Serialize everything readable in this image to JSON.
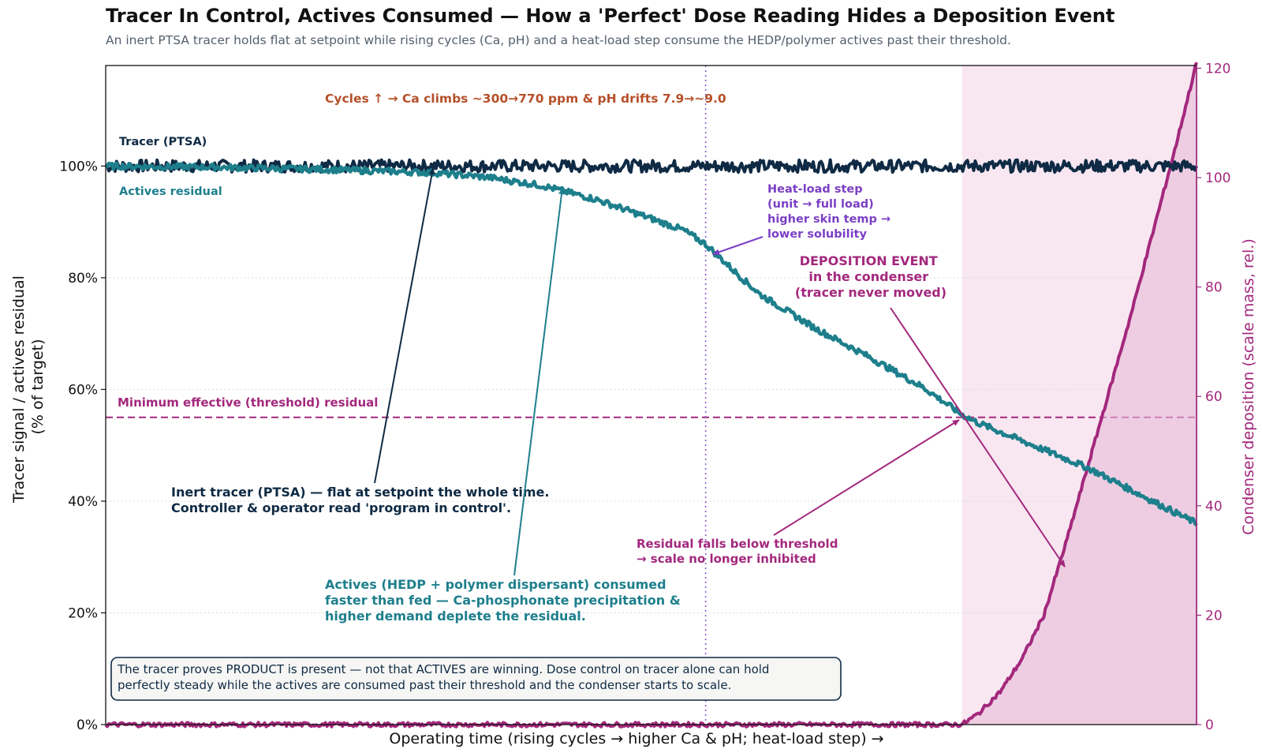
{
  "title": "Tracer In Control, Actives Consumed — How a 'Perfect' Dose Reading Hides a Deposition Event",
  "subtitle": "An inert PTSA tracer holds flat at setpoint while rising cycles (Ca, pH) and a heat-load step consume the HEDP/polymer actives past their threshold.",
  "colors": {
    "tracer": "#0f2a44",
    "actives": "#1e7f8c",
    "deposition": "#a3287d",
    "threshold": "#a3287d",
    "heat_step": "#7b3fc4",
    "cycles_note": "#b5502a",
    "deposition_shade": "#f3d9ea"
  },
  "chart_data": {
    "type": "line",
    "xlabel": "Operating time  (rising cycles → higher Ca & pH; heat-load step) →",
    "ylabel": "Tracer signal / actives residual\n(% of target)",
    "y2label": "Condenser deposition (scale mass, rel.)",
    "xlim": [
      0,
      100
    ],
    "ylim": [
      0,
      118
    ],
    "y2lim": [
      0,
      120.5
    ],
    "yticks": [
      0,
      20,
      40,
      60,
      80,
      100
    ],
    "ytick_labels": [
      "0%",
      "20%",
      "40%",
      "60%",
      "80%",
      "100%"
    ],
    "y2ticks": [
      0,
      20,
      40,
      60,
      80,
      100,
      120
    ],
    "ytick2_labels": [
      "0",
      "20",
      "40",
      "60",
      "80",
      "100",
      "120"
    ],
    "grid": "horizontal dotted",
    "threshold": {
      "value": 55,
      "label": "Minimum effective (threshold) residual"
    },
    "heat_step_x": 55,
    "deposition_region_start_x": 78.5,
    "series": [
      {
        "name": "Tracer (PTSA)",
        "axis": "left",
        "x": [
          0,
          10,
          20,
          30,
          40,
          50,
          55,
          60,
          70,
          78.5,
          80,
          90,
          100
        ],
        "values": [
          100,
          100,
          100,
          100,
          100,
          100,
          100,
          100,
          100,
          100,
          100,
          100,
          100
        ]
      },
      {
        "name": "Actives residual",
        "axis": "left",
        "x": [
          0,
          10,
          20,
          27,
          30,
          35,
          40,
          45,
          50,
          53,
          55,
          58,
          60,
          65,
          70,
          75,
          78.5,
          80,
          85,
          90,
          95,
          100
        ],
        "values": [
          100,
          99.8,
          99.4,
          99,
          98.8,
          98,
          96.5,
          94,
          90.6,
          88.5,
          86,
          80.5,
          77,
          71,
          65.8,
          60.3,
          55.5,
          54,
          50,
          46,
          41,
          36
        ]
      },
      {
        "name": "Condenser deposition",
        "axis": "right",
        "x": [
          0,
          78.5,
          80,
          82,
          84,
          86,
          88,
          90,
          92,
          94,
          96,
          98,
          100
        ],
        "values": [
          0,
          0,
          2,
          6,
          12,
          20,
          33,
          47,
          61,
          75,
          90,
          105,
          121
        ]
      }
    ],
    "annotations": {
      "cycles": "Cycles ↑ → Ca climbs ~300→770 ppm  &  pH drifts 7.9→~9.0",
      "tracer_label": "Tracer (PTSA)",
      "actives_label": "Actives residual",
      "heat_step": [
        "Heat-load step",
        "(unit → full load)",
        "higher skin temp →",
        "lower solubility"
      ],
      "deposition_event": [
        "DEPOSITION EVENT",
        "in the condenser",
        "(tracer never moved)"
      ],
      "tracer_note": [
        "Inert tracer (PTSA) — flat at setpoint the whole time.",
        "Controller & operator read 'program in control'."
      ],
      "actives_note": [
        "Actives (HEDP + polymer dispersant) consumed",
        "faster than fed — Ca-phosphonate precipitation &",
        "higher demand deplete the residual."
      ],
      "residual_note": [
        "Residual falls below threshold",
        "→ scale no longer inhibited"
      ],
      "box_note": [
        "The tracer proves PRODUCT is present — not that ACTIVES are winning. Dose control on tracer alone can hold",
        "perfectly steady while the actives are consumed past their threshold and the condenser starts to scale."
      ]
    }
  }
}
